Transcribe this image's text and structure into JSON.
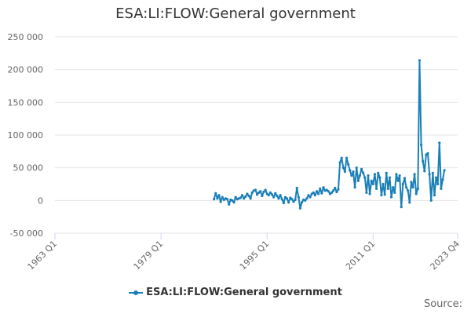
{
  "chart_data": {
    "type": "line",
    "title": "ESA:LI:FLOW:General government",
    "xlabel": "",
    "ylabel": "",
    "x_tick_labels": [
      "1963 Q1",
      "1979 Q1",
      "1995 Q1",
      "2011 Q1",
      "2023 Q4"
    ],
    "x_tick_values": [
      1963.0,
      1979.0,
      1995.0,
      2011.0,
      2023.75
    ],
    "xlim": [
      1963.0,
      2023.75
    ],
    "y_tick_labels": [
      "-50 000",
      "0",
      "50 000",
      "100 000",
      "150 000",
      "200 000",
      "250 000"
    ],
    "y_tick_values": [
      -50000,
      0,
      50000,
      100000,
      150000,
      200000,
      250000
    ],
    "ylim": [
      -50000,
      250000
    ],
    "grid": "horizontal",
    "legend_position": "bottom",
    "color": "#1a7fb8",
    "series": [
      {
        "name": "ESA:LI:FLOW:General government",
        "points": [
          [
            1987.0,
            2000
          ],
          [
            1987.25,
            11000
          ],
          [
            1987.5,
            3000
          ],
          [
            1987.75,
            8000
          ],
          [
            1988.0,
            -2000
          ],
          [
            1988.25,
            5000
          ],
          [
            1988.5,
            1000
          ],
          [
            1988.75,
            3000
          ],
          [
            1989.0,
            2000
          ],
          [
            1989.25,
            -6000
          ],
          [
            1989.5,
            1000
          ],
          [
            1989.75,
            0
          ],
          [
            1990.0,
            -3000
          ],
          [
            1990.25,
            5000
          ],
          [
            1990.5,
            2000
          ],
          [
            1990.75,
            3000
          ],
          [
            1991.0,
            4000
          ],
          [
            1991.25,
            8000
          ],
          [
            1991.5,
            3000
          ],
          [
            1991.75,
            6000
          ],
          [
            1992.0,
            10000
          ],
          [
            1992.25,
            7000
          ],
          [
            1992.5,
            3000
          ],
          [
            1992.75,
            12000
          ],
          [
            1993.0,
            15000
          ],
          [
            1993.25,
            16000
          ],
          [
            1993.5,
            9000
          ],
          [
            1993.75,
            12000
          ],
          [
            1994.0,
            14000
          ],
          [
            1994.25,
            7000
          ],
          [
            1994.5,
            13000
          ],
          [
            1994.75,
            16000
          ],
          [
            1995.0,
            10000
          ],
          [
            1995.25,
            8000
          ],
          [
            1995.5,
            12000
          ],
          [
            1995.75,
            9000
          ],
          [
            1996.0,
            5000
          ],
          [
            1996.25,
            11000
          ],
          [
            1996.5,
            7000
          ],
          [
            1996.75,
            3000
          ],
          [
            1997.0,
            8000
          ],
          [
            1997.25,
            2000
          ],
          [
            1997.5,
            -4000
          ],
          [
            1997.75,
            5000
          ],
          [
            1998.0,
            3000
          ],
          [
            1998.25,
            -3000
          ],
          [
            1998.5,
            4000
          ],
          [
            1998.75,
            2000
          ],
          [
            1999.0,
            -2000
          ],
          [
            1999.25,
            1000
          ],
          [
            1999.5,
            19000
          ],
          [
            1999.75,
            5000
          ],
          [
            2000.0,
            -12000
          ],
          [
            2000.25,
            -3000
          ],
          [
            2000.5,
            1000
          ],
          [
            2000.75,
            0
          ],
          [
            2001.0,
            3000
          ],
          [
            2001.25,
            8000
          ],
          [
            2001.5,
            5000
          ],
          [
            2001.75,
            10000
          ],
          [
            2002.0,
            12000
          ],
          [
            2002.25,
            8000
          ],
          [
            2002.5,
            14000
          ],
          [
            2002.75,
            10000
          ],
          [
            2003.0,
            18000
          ],
          [
            2003.25,
            11000
          ],
          [
            2003.5,
            20000
          ],
          [
            2003.75,
            15000
          ],
          [
            2004.0,
            16000
          ],
          [
            2004.25,
            14000
          ],
          [
            2004.5,
            10000
          ],
          [
            2004.75,
            12000
          ],
          [
            2005.0,
            15000
          ],
          [
            2005.25,
            19000
          ],
          [
            2005.5,
            13000
          ],
          [
            2005.75,
            17000
          ],
          [
            2006.0,
            58000
          ],
          [
            2006.25,
            65000
          ],
          [
            2006.5,
            50000
          ],
          [
            2006.75,
            44000
          ],
          [
            2007.0,
            65000
          ],
          [
            2007.25,
            55000
          ],
          [
            2007.5,
            46000
          ],
          [
            2007.75,
            38000
          ],
          [
            2008.0,
            44000
          ],
          [
            2008.25,
            20000
          ],
          [
            2008.5,
            50000
          ],
          [
            2008.75,
            30000
          ],
          [
            2009.0,
            38000
          ],
          [
            2009.25,
            48000
          ],
          [
            2009.5,
            42000
          ],
          [
            2009.75,
            35000
          ],
          [
            2010.0,
            12000
          ],
          [
            2010.25,
            38000
          ],
          [
            2010.5,
            10000
          ],
          [
            2010.75,
            30000
          ],
          [
            2011.0,
            25000
          ],
          [
            2011.25,
            40000
          ],
          [
            2011.5,
            18000
          ],
          [
            2011.75,
            42000
          ],
          [
            2012.0,
            35000
          ],
          [
            2012.25,
            8000
          ],
          [
            2012.5,
            25000
          ],
          [
            2012.75,
            9000
          ],
          [
            2013.0,
            42000
          ],
          [
            2013.25,
            18000
          ],
          [
            2013.5,
            35000
          ],
          [
            2013.75,
            5000
          ],
          [
            2014.0,
            20000
          ],
          [
            2014.25,
            12000
          ],
          [
            2014.5,
            40000
          ],
          [
            2014.75,
            30000
          ],
          [
            2015.0,
            38000
          ],
          [
            2015.25,
            -10000
          ],
          [
            2015.5,
            25000
          ],
          [
            2015.75,
            34000
          ],
          [
            2016.0,
            20000
          ],
          [
            2016.25,
            15000
          ],
          [
            2016.5,
            -3000
          ],
          [
            2016.75,
            28000
          ],
          [
            2017.0,
            20000
          ],
          [
            2017.25,
            40000
          ],
          [
            2017.5,
            10000
          ],
          [
            2017.75,
            18000
          ],
          [
            2018.0,
            214000
          ],
          [
            2018.25,
            85000
          ],
          [
            2018.5,
            60000
          ],
          [
            2018.75,
            45000
          ],
          [
            2019.0,
            70000
          ],
          [
            2019.25,
            72000
          ],
          [
            2019.5,
            40000
          ],
          [
            2019.75,
            0
          ],
          [
            2020.0,
            42000
          ],
          [
            2020.25,
            8000
          ],
          [
            2020.5,
            35000
          ],
          [
            2020.75,
            25000
          ],
          [
            2021.0,
            88000
          ],
          [
            2021.25,
            18000
          ],
          [
            2021.5,
            32000
          ],
          [
            2021.75,
            46000
          ]
        ]
      }
    ]
  },
  "source_label": "Source:"
}
